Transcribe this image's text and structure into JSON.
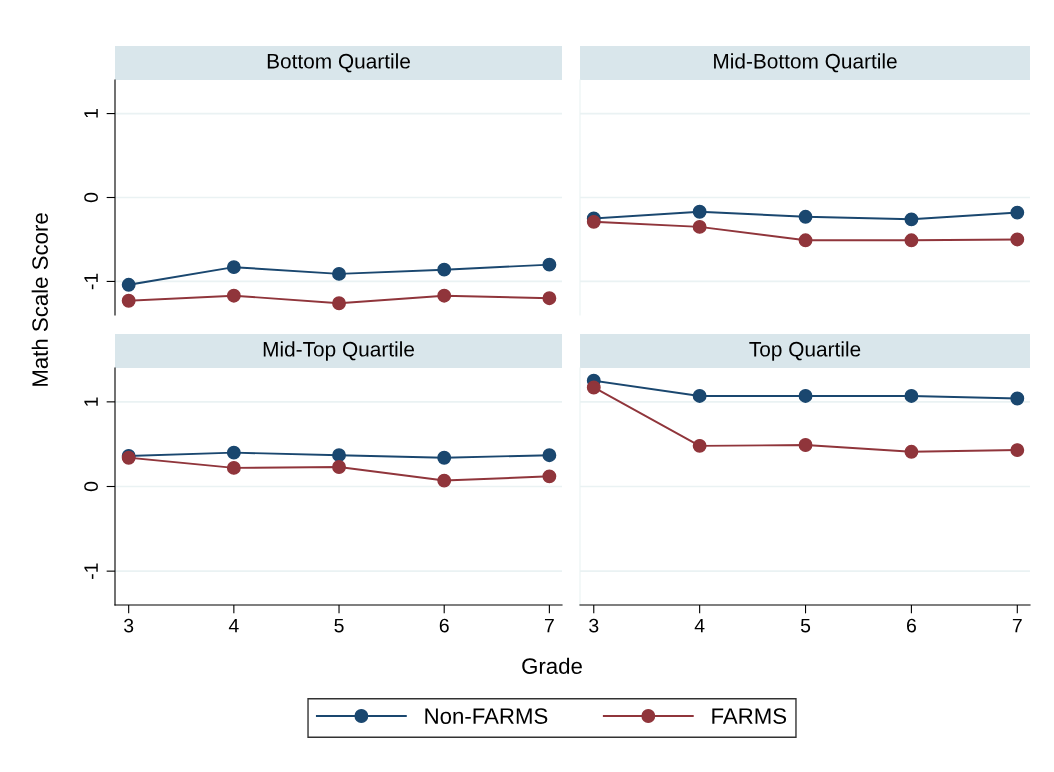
{
  "chart_data": [
    {
      "type": "line",
      "title": "Bottom Quartile",
      "ylabel": "Math Scale Score",
      "x": [
        3,
        4,
        5,
        6,
        7
      ],
      "xlim": [
        2.87,
        7.12
      ],
      "xticks": [
        3,
        4,
        5,
        6,
        7
      ],
      "ylim": [
        -1.4,
        1.4
      ],
      "yticks": [
        -1,
        0,
        1
      ],
      "tick_labels": "y",
      "grid": "y",
      "marker": "circle",
      "legend": "bottom",
      "series": [
        {
          "name": "Non-FARMS",
          "color": "#1a476f",
          "values": [
            -1.04,
            -0.83,
            -0.91,
            -0.86,
            -0.8
          ]
        },
        {
          "name": "FARMS",
          "color": "#90353b",
          "values": [
            -1.23,
            -1.17,
            -1.26,
            -1.17,
            -1.2
          ]
        }
      ]
    },
    {
      "type": "line",
      "title": "Mid-Bottom Quartile",
      "x": [
        3,
        4,
        5,
        6,
        7
      ],
      "xlim": [
        2.87,
        7.12
      ],
      "xticks": [
        3,
        4,
        5,
        6,
        7
      ],
      "ylim": [
        -1.4,
        1.4
      ],
      "yticks": [
        -1,
        0,
        1
      ],
      "tick_labels": false,
      "grid": "y",
      "marker": "circle",
      "legend": "bottom",
      "series": [
        {
          "name": "Non-FARMS",
          "color": "#1a476f",
          "values": [
            -0.25,
            -0.17,
            -0.23,
            -0.26,
            -0.18
          ]
        },
        {
          "name": "FARMS",
          "color": "#90353b",
          "values": [
            -0.29,
            -0.35,
            -0.51,
            -0.51,
            -0.5
          ]
        }
      ]
    },
    {
      "type": "line",
      "title": "Mid-Top Quartile",
      "xlabel": "Grade",
      "x": [
        3,
        4,
        5,
        6,
        7
      ],
      "xlim": [
        2.87,
        7.12
      ],
      "xticks": [
        3,
        4,
        5,
        6,
        7
      ],
      "ylim": [
        -1.4,
        1.4
      ],
      "yticks": [
        -1,
        0,
        1
      ],
      "grid": "y",
      "marker": "circle",
      "legend": "bottom",
      "series": [
        {
          "name": "Non-FARMS",
          "color": "#1a476f",
          "values": [
            0.36,
            0.4,
            0.37,
            0.34,
            0.37
          ]
        },
        {
          "name": "FARMS",
          "color": "#90353b",
          "values": [
            0.34,
            0.22,
            0.23,
            0.07,
            0.12
          ]
        }
      ]
    },
    {
      "type": "line",
      "title": "Top Quartile",
      "x": [
        3,
        4,
        5,
        6,
        7
      ],
      "xlim": [
        2.87,
        7.12
      ],
      "xticks": [
        3,
        4,
        5,
        6,
        7
      ],
      "ylim": [
        -1.4,
        1.4
      ],
      "yticks": [
        -1,
        0,
        1
      ],
      "tick_labels": "x",
      "grid": "y",
      "marker": "circle",
      "legend": "bottom",
      "series": [
        {
          "name": "Non-FARMS",
          "color": "#1a476f",
          "values": [
            1.25,
            1.07,
            1.07,
            1.07,
            1.04
          ]
        },
        {
          "name": "FARMS",
          "color": "#90353b",
          "values": [
            1.17,
            0.48,
            0.49,
            0.41,
            0.43
          ]
        }
      ]
    }
  ]
}
